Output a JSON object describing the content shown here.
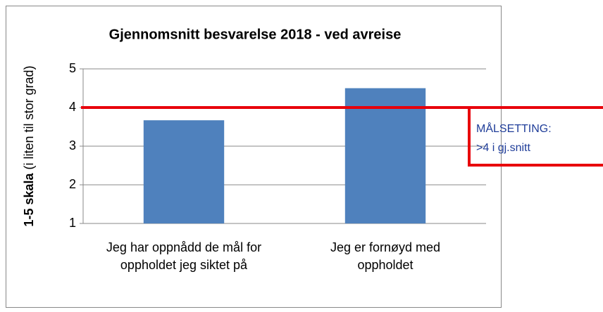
{
  "chart_data": {
    "type": "bar",
    "title": "Gjennomsnitt besvarelse 2018 - ved avreise",
    "ylabel": [
      "1-5 skala",
      "(i liten til stor grad)"
    ],
    "categories": [
      "Jeg har oppnådd de mål for oppholdet jeg siktet på",
      "Jeg er fornøyd med oppholdet"
    ],
    "values": [
      3.67,
      4.5
    ],
    "color": "#4f81bd",
    "ylim": [
      1,
      5
    ],
    "yticks": [
      1,
      2,
      3,
      4,
      5
    ],
    "grid": true,
    "target": {
      "value": 4,
      "color": "#e8000b"
    },
    "annotation": [
      "MÅLSETTING:",
      ">4 i gj.snitt"
    ]
  }
}
